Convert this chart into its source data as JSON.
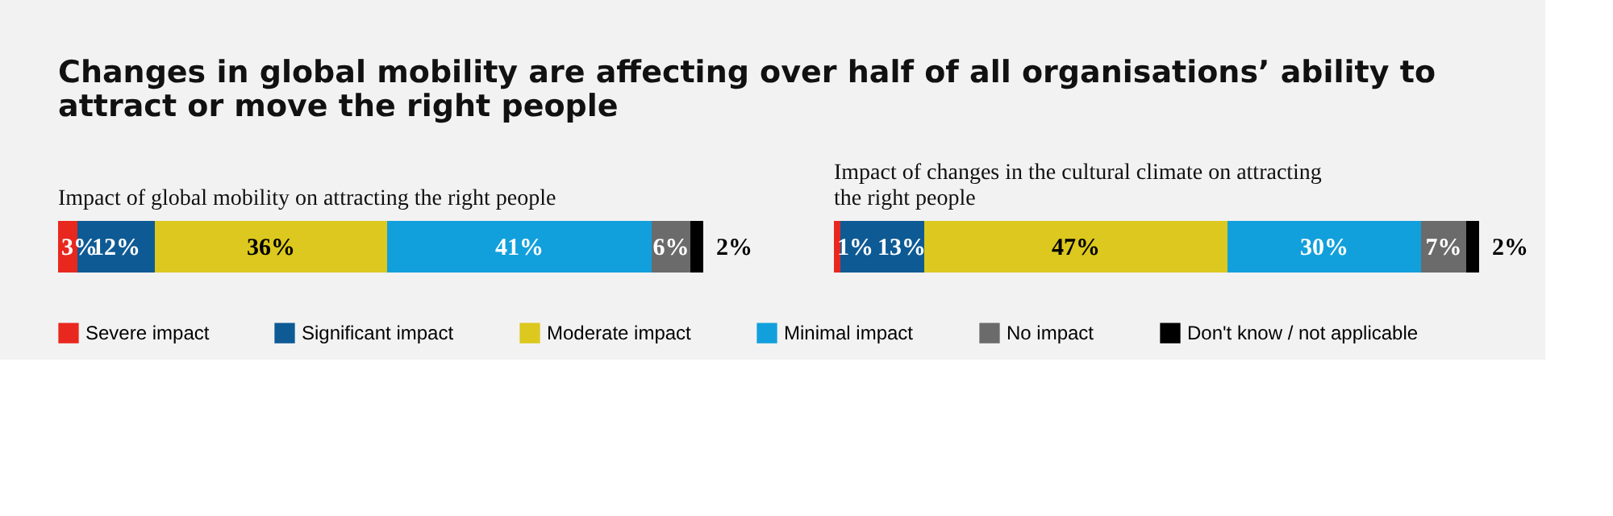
{
  "chart_data": [
    {
      "type": "bar",
      "stacked": true,
      "orientation": "horizontal",
      "title": "Changes in global mobility are affecting over half of all organisations’ ability to attract or move the right people",
      "subtitle": "Impact of global mobility on attracting the right people",
      "categories": [
        null
      ],
      "tick_labels": false,
      "legend": "bottom",
      "series": [
        {
          "name": "Severe impact",
          "color": "#e8281e",
          "values": [
            3
          ],
          "value_labels": [
            "3%"
          ]
        },
        {
          "name": "Significant impact",
          "color": "#0e5a94",
          "values": [
            12
          ],
          "value_labels": [
            "12%"
          ]
        },
        {
          "name": "Moderate impact",
          "color": "#dcc81e",
          "values": [
            36
          ],
          "value_labels": [
            "36%"
          ]
        },
        {
          "name": "Minimal impact",
          "color": "#12a0dc",
          "values": [
            41
          ],
          "value_labels": [
            "41%"
          ]
        },
        {
          "name": "No impact",
          "color": "#6b6b6b",
          "values": [
            6
          ],
          "value_labels": [
            "6%"
          ]
        },
        {
          "name": "Don't know / not applicable",
          "color": "#000000",
          "values": [
            2
          ],
          "value_labels": [
            "2%"
          ]
        }
      ]
    },
    {
      "type": "bar",
      "stacked": true,
      "orientation": "horizontal",
      "subtitle": "Impact of changes in the cultural climate on attracting the right people",
      "categories": [
        null
      ],
      "tick_labels": false,
      "legend": "bottom",
      "series": [
        {
          "name": "Severe impact",
          "color": "#e8281e",
          "values": [
            1
          ],
          "value_labels": [
            "1%"
          ]
        },
        {
          "name": "Significant impact",
          "color": "#0e5a94",
          "values": [
            13
          ],
          "value_labels": [
            "13%"
          ]
        },
        {
          "name": "Moderate impact",
          "color": "#dcc81e",
          "values": [
            47
          ],
          "value_labels": [
            "47%"
          ]
        },
        {
          "name": "Minimal impact",
          "color": "#12a0dc",
          "values": [
            30
          ],
          "value_labels": [
            "30%"
          ]
        },
        {
          "name": "No impact",
          "color": "#6b6b6b",
          "values": [
            7
          ],
          "value_labels": [
            "7%"
          ]
        },
        {
          "name": "Don't know / not applicable",
          "color": "#000000",
          "values": [
            2
          ],
          "value_labels": [
            "2%"
          ]
        }
      ]
    }
  ]
}
